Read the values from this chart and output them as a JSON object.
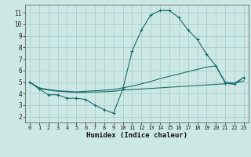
{
  "xlabel": "Humidex (Indice chaleur)",
  "background_color": "#cce8e5",
  "grid_color": "#aacfcc",
  "line_color": "#1a6b6b",
  "xlim": [
    -0.5,
    23.5
  ],
  "ylim": [
    1.5,
    11.7
  ],
  "xticks": [
    0,
    1,
    2,
    3,
    4,
    5,
    6,
    7,
    8,
    9,
    10,
    11,
    12,
    13,
    14,
    15,
    16,
    17,
    18,
    19,
    20,
    21,
    22,
    23
  ],
  "yticks": [
    2,
    3,
    4,
    5,
    6,
    7,
    8,
    9,
    10,
    11
  ],
  "curve_main": [
    5.0,
    4.4,
    3.9,
    3.9,
    3.6,
    3.6,
    3.5,
    3.0,
    2.6,
    2.3,
    4.4,
    7.7,
    9.5,
    10.8,
    11.2,
    11.2,
    10.6,
    9.5,
    8.7,
    7.4,
    6.4,
    4.9,
    4.8,
    5.4
  ],
  "curve_flat1": [
    5.0,
    4.45,
    4.3,
    4.2,
    4.15,
    4.1,
    4.12,
    4.14,
    4.16,
    4.2,
    4.3,
    4.35,
    4.4,
    4.45,
    4.5,
    4.55,
    4.6,
    4.65,
    4.7,
    4.75,
    4.8,
    4.85,
    4.9,
    5.1
  ],
  "curve_flat2": [
    5.0,
    4.5,
    4.35,
    4.25,
    4.2,
    4.15,
    4.2,
    4.25,
    4.3,
    4.35,
    4.5,
    4.65,
    4.85,
    5.05,
    5.3,
    5.5,
    5.7,
    5.9,
    6.1,
    6.3,
    6.4,
    5.0,
    4.9,
    5.4
  ]
}
